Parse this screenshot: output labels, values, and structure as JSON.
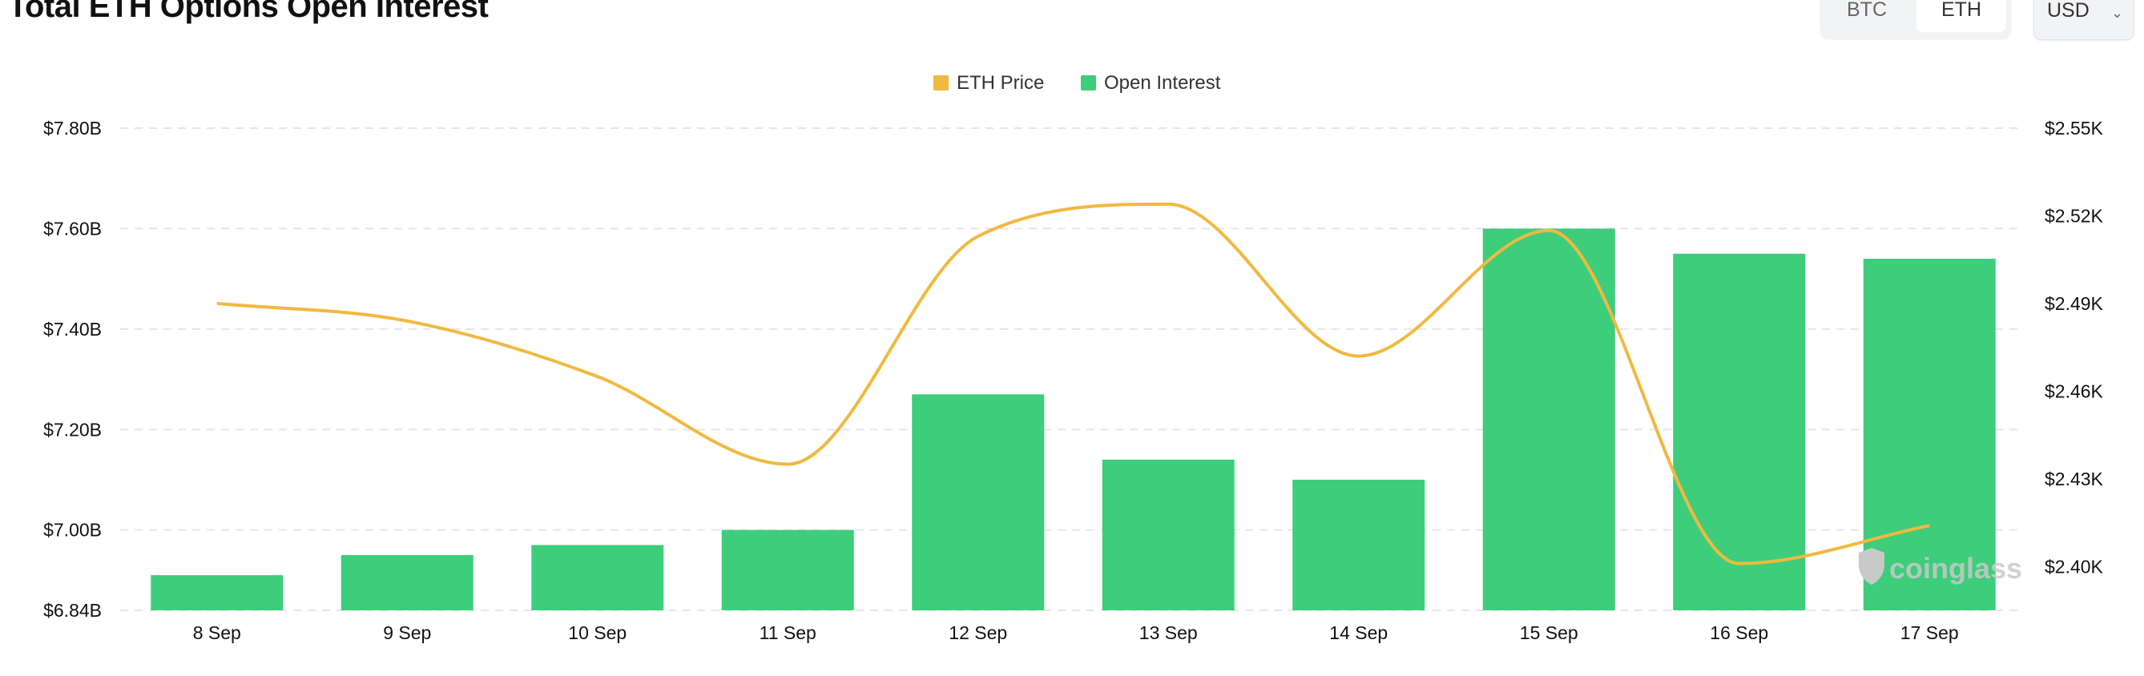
{
  "header": {
    "title": "Total ETH Options Open Interest",
    "asset_tabs": [
      {
        "label": "BTC",
        "active": false
      },
      {
        "label": "ETH",
        "active": true
      }
    ],
    "currency": {
      "label": "USD",
      "icon": "updown-chevron-icon"
    }
  },
  "watermark": {
    "text": "coinglass",
    "icon": "coinglass-logo-icon"
  },
  "chart_data": {
    "type": "bar",
    "categories": [
      "8 Sep",
      "9 Sep",
      "10 Sep",
      "11 Sep",
      "12 Sep",
      "13 Sep",
      "14 Sep",
      "15 Sep",
      "16 Sep",
      "17 Sep"
    ],
    "legend": {
      "placement": "top-center"
    },
    "grid": true,
    "series": [
      {
        "name": "Open Interest",
        "type": "bar",
        "axis": "left",
        "color": "#3ecd7b",
        "values": [
          6.91,
          6.95,
          6.97,
          7.0,
          7.27,
          7.14,
          7.1,
          7.6,
          7.55,
          7.54
        ]
      },
      {
        "name": "ETH Price",
        "type": "line",
        "axis": "right",
        "color": "#f0b940",
        "values": [
          2490,
          2484,
          2465,
          2435,
          2513,
          2524,
          2472,
          2515,
          2401,
          2414
        ]
      }
    ],
    "y_left": {
      "ticks": [
        "$7.80B",
        "$7.60B",
        "$7.40B",
        "$7.20B",
        "$7.00B",
        "$6.84B"
      ],
      "tick_values": [
        7.8,
        7.6,
        7.4,
        7.2,
        7.0,
        6.84
      ],
      "range": [
        6.84,
        7.8
      ]
    },
    "y_right": {
      "ticks": [
        "$2.55K",
        "$2.52K",
        "$2.49K",
        "$2.46K",
        "$2.43K",
        "$2.40K"
      ],
      "tick_values": [
        2550,
        2520,
        2490,
        2460,
        2430,
        2400
      ],
      "range": [
        2385,
        2550
      ]
    }
  }
}
